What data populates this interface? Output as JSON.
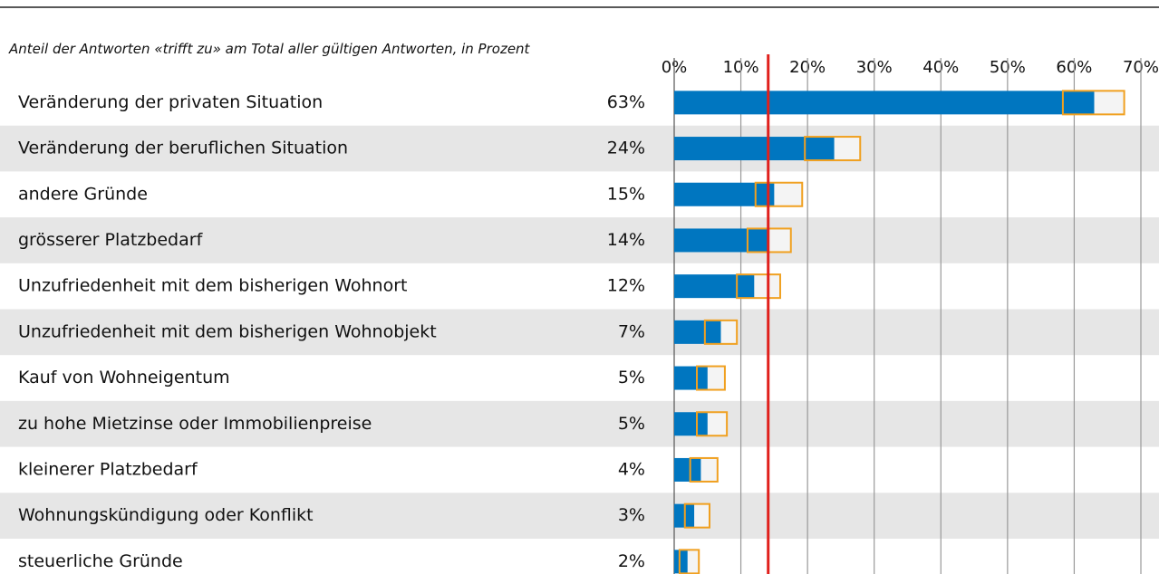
{
  "chart_data": {
    "type": "bar_ci",
    "subtitle": "Anteil der Antworten «trifft zu» am Total aller gültigen Antworten, in Prozent",
    "categories": [
      "Veränderung der privaten Situation",
      "Veränderung der beruflichen Situation",
      "andere Gründe",
      "grösserer Platzbedarf",
      "Unzufriedenheit mit dem bisherigen Wohnort",
      "Unzufriedenheit mit dem bisherigen Wohnobjekt",
      "Kauf von Wohneigentum",
      "zu hohe Mietzinse oder Immobilienpreise",
      "kleinerer Platzbedarf",
      "Wohnungskündigung oder Konflikt",
      "steuerliche Gründe"
    ],
    "values": [
      63,
      24,
      15,
      14,
      12,
      7,
      5,
      5,
      4,
      3,
      2
    ],
    "value_labels": [
      "63%",
      "24%",
      "15%",
      "14%",
      "12%",
      "7%",
      "5%",
      "5%",
      "4%",
      "3%",
      "2%"
    ],
    "lower": [
      58.3,
      19.6,
      12.2,
      11.0,
      9.4,
      4.6,
      3.4,
      3.4,
      2.4,
      1.6,
      0.8
    ],
    "upper": [
      67.5,
      27.9,
      19.2,
      17.5,
      15.9,
      9.4,
      7.6,
      7.9,
      6.5,
      5.3,
      3.7
    ],
    "color": "#0076c0",
    "ci_color": "#f0a020",
    "reference_line": 14.1,
    "reference_color": "#e0201c",
    "xlim": [
      0,
      70
    ],
    "xticks": [
      {
        "value": 0,
        "label": "0%"
      },
      {
        "value": 10,
        "label": "10%"
      },
      {
        "value": 20,
        "label": "20%"
      },
      {
        "value": 30,
        "label": "30%"
      },
      {
        "value": 40,
        "label": "40%"
      },
      {
        "value": 50,
        "label": "50%"
      },
      {
        "value": 60,
        "label": "60%"
      },
      {
        "value": 70,
        "label": "70%"
      }
    ],
    "grid": true
  }
}
